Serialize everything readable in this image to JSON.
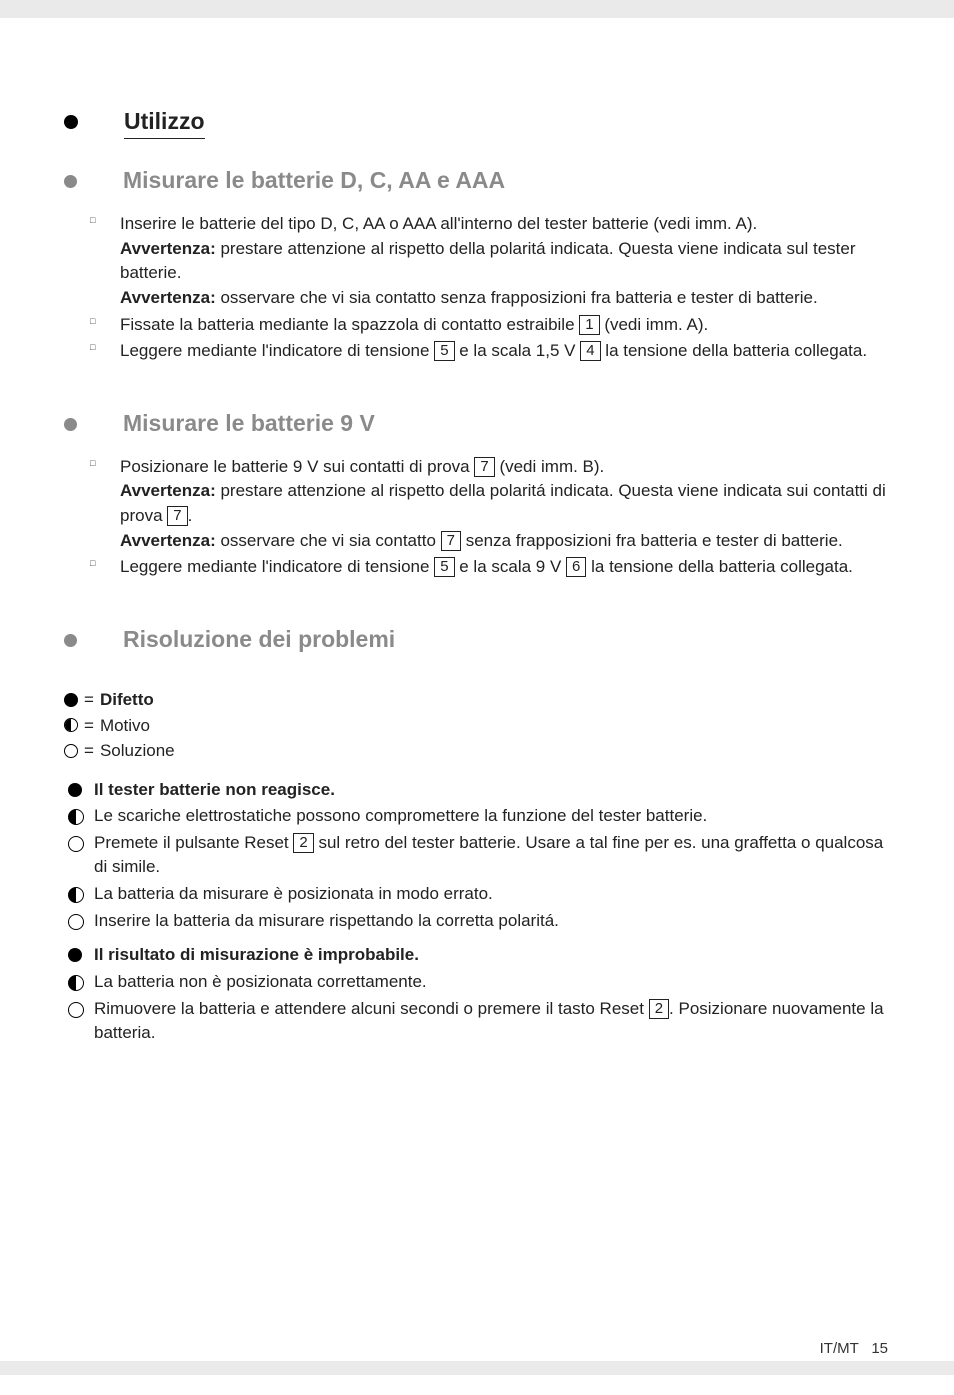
{
  "headings": {
    "utilizzo": "Utilizzo",
    "misurare_dcaa": "Misurare le batterie D, C, AA e AAA",
    "misurare_9v": "Misurare le batterie 9 V",
    "risoluzione": "Risoluzione dei problemi"
  },
  "section1": {
    "b1_a": "Inserire le batterie del tipo D, C, AA o AAA all'interno del tester batterie (vedi imm. A).",
    "b1_note1_label": "Avvertenza:",
    "b1_note1_text": " prestare attenzione al rispetto della polaritá indicata. Questa viene indicata sul tester batterie.",
    "b1_note2_label": "Avvertenza:",
    "b1_note2_text": " osservare che vi sia contatto senza frapposizioni fra batteria e tester di batterie.",
    "b2_a": "Fissate la batteria mediante la spazzola di contatto estraibile ",
    "b2_ref": "1",
    "b2_b": " (vedi imm. A).",
    "b3_a": "Leggere mediante l'indicatore di tensione ",
    "b3_ref1": "5",
    "b3_mid": " e la scala 1,5 V ",
    "b3_ref2": "4",
    "b3_b": " la tensione della batteria collegata."
  },
  "section2": {
    "b1_a": "Posizionare le batterie 9 V sui contatti di prova ",
    "b1_ref": "7",
    "b1_b": " (vedi imm. B).",
    "b1_note1_label": "Avvertenza:",
    "b1_note1_text_a": " prestare attenzione al rispetto della polaritá indicata. Questa viene indicata sui contatti di prova ",
    "b1_note1_ref": "7",
    "b1_note1_text_b": ".",
    "b1_note2_label": "Avvertenza:",
    "b1_note2_text_a": " osservare che vi sia contatto ",
    "b1_note2_ref": "7",
    "b1_note2_text_b": " senza frapposizioni fra batteria e tester di batterie.",
    "b2_a": "Leggere mediante l'indicatore di tensione ",
    "b2_ref1": "5",
    "b2_mid": " e la scala 9 V ",
    "b2_ref2": "6",
    "b2_b": " la tensione della batteria collegata."
  },
  "legend": {
    "difetto": "Difetto",
    "motivo": "Motivo",
    "soluzione": "Soluzione"
  },
  "problem1": {
    "title": "Il tester batterie non reagisce.",
    "m1": "Le scariche elettrostatiche possono compromettere la funzione del tester batterie.",
    "s1_a": "Premete il pulsante Reset ",
    "s1_ref": "2",
    "s1_b": " sul retro del tester batterie. Usare a tal fine per es. una graffetta o qualcosa di simile.",
    "m2": "La batteria da misurare è posizionata in modo errato.",
    "s2": "Inserire la batteria da misurare rispettando la corretta polaritá."
  },
  "problem2": {
    "title": "Il risultato di misurazione è improbabile.",
    "m1": "La batteria non è posizionata correttamente.",
    "s1_a": "Rimuovere la batteria e attendere alcuni secondi o premere il tasto Reset ",
    "s1_ref": "2",
    "s1_b": ". Posizionare nuovamente la batteria."
  },
  "footer": {
    "locale": "IT/MT",
    "page": "15"
  }
}
